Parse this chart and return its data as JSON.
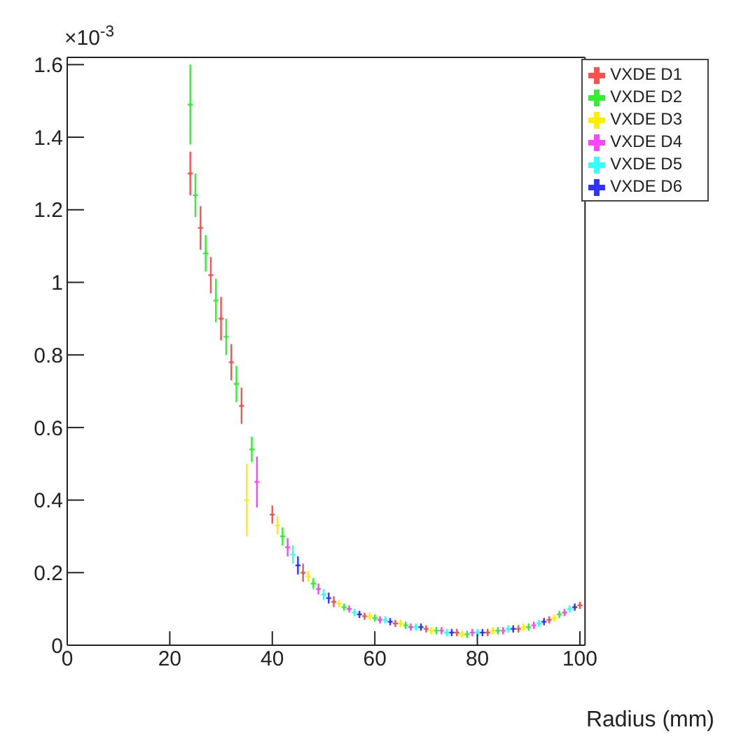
{
  "chart_data": {
    "type": "scatter",
    "xlabel": "Radius (mm)",
    "annotations": [
      "×10$^{-3}$"
    ],
    "xlim": [
      0,
      101
    ],
    "ylim": [
      0,
      1.62
    ],
    "xticks": [
      0,
      20,
      40,
      60,
      80,
      100
    ],
    "yticks": [
      0,
      0.2,
      0.4,
      0.6,
      0.8,
      1,
      1.2,
      1.4,
      1.6
    ],
    "grid": false,
    "legend": "top right",
    "marker": "cross",
    "series": [
      {
        "name": "VXDE D1",
        "color": "#ff5050",
        "x": [
          24,
          26,
          28,
          30,
          32,
          34,
          40,
          46,
          52,
          58,
          64,
          70,
          76,
          82,
          88,
          94,
          100
        ],
        "values": [
          1.3,
          1.15,
          1.02,
          0.9,
          0.78,
          0.66,
          0.36,
          0.2,
          0.12,
          0.08,
          0.06,
          0.045,
          0.035,
          0.035,
          0.045,
          0.07,
          0.11
        ],
        "errors": [
          0.06,
          0.06,
          0.05,
          0.06,
          0.05,
          0.05,
          0.025,
          0.025,
          0.015,
          0.01,
          0.01,
          0.01,
          0.01,
          0.01,
          0.01,
          0.01,
          0.01
        ]
      },
      {
        "name": "VXDE D2",
        "color": "#33ee33",
        "x": [
          24,
          25,
          27,
          29,
          31,
          33,
          36,
          42,
          48,
          54,
          60,
          66,
          72,
          78,
          84,
          90,
          96
        ],
        "values": [
          1.49,
          1.24,
          1.08,
          0.95,
          0.85,
          0.72,
          0.54,
          0.3,
          0.17,
          0.105,
          0.075,
          0.055,
          0.04,
          0.03,
          0.04,
          0.05,
          0.085
        ],
        "errors": [
          0.11,
          0.06,
          0.05,
          0.06,
          0.05,
          0.05,
          0.035,
          0.025,
          0.015,
          0.01,
          0.01,
          0.01,
          0.01,
          0.01,
          0.01,
          0.01,
          0.01
        ]
      },
      {
        "name": "VXDE D3",
        "color": "#ffee00",
        "x": [
          35,
          41,
          47,
          53,
          59,
          65,
          71,
          77,
          83,
          89,
          95
        ],
        "values": [
          0.4,
          0.33,
          0.19,
          0.115,
          0.08,
          0.06,
          0.04,
          0.03,
          0.04,
          0.05,
          0.075
        ],
        "errors": [
          0.1,
          0.025,
          0.015,
          0.01,
          0.01,
          0.01,
          0.01,
          0.01,
          0.01,
          0.01,
          0.01
        ]
      },
      {
        "name": "VXDE D4",
        "color": "#ff44ff",
        "x": [
          37,
          43,
          49,
          55,
          61,
          67,
          73,
          79,
          85,
          91,
          97
        ],
        "values": [
          0.45,
          0.27,
          0.155,
          0.1,
          0.07,
          0.05,
          0.04,
          0.035,
          0.04,
          0.055,
          0.09
        ],
        "errors": [
          0.07,
          0.025,
          0.015,
          0.01,
          0.01,
          0.01,
          0.01,
          0.01,
          0.01,
          0.01,
          0.01
        ]
      },
      {
        "name": "VXDE D5",
        "color": "#33ffff",
        "x": [
          44,
          50,
          56,
          62,
          68,
          74,
          80,
          86,
          92,
          98
        ],
        "values": [
          0.25,
          0.14,
          0.09,
          0.07,
          0.05,
          0.035,
          0.035,
          0.045,
          0.06,
          0.1
        ],
        "errors": [
          0.025,
          0.015,
          0.01,
          0.01,
          0.01,
          0.01,
          0.01,
          0.01,
          0.01,
          0.01
        ]
      },
      {
        "name": "VXDE D6",
        "color": "#3333ff",
        "x": [
          45,
          51,
          57,
          63,
          69,
          75,
          81,
          87,
          93,
          99
        ],
        "values": [
          0.22,
          0.13,
          0.085,
          0.065,
          0.05,
          0.035,
          0.035,
          0.045,
          0.065,
          0.105
        ],
        "errors": [
          0.025,
          0.015,
          0.01,
          0.01,
          0.01,
          0.01,
          0.01,
          0.01,
          0.01,
          0.01
        ]
      }
    ]
  }
}
